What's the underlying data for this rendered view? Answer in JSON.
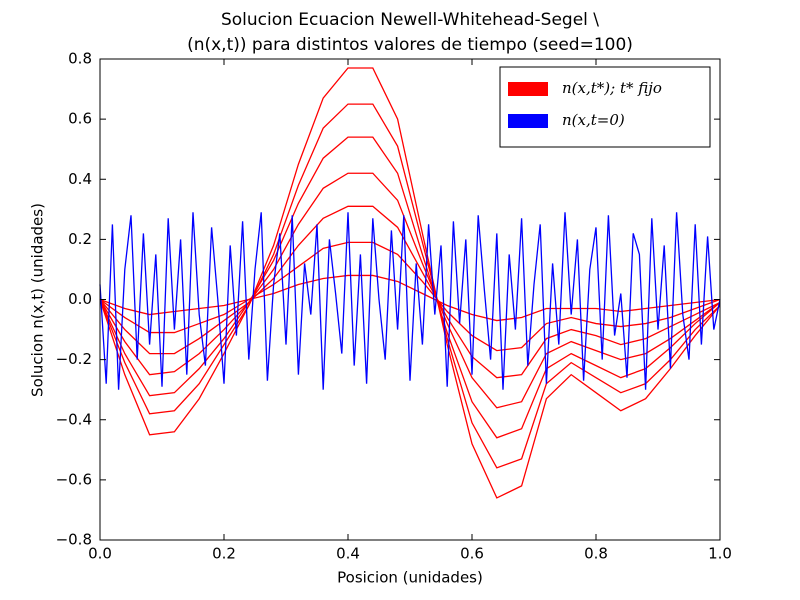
{
  "chart_data": {
    "type": "line",
    "title": "Solucion Ecuacion Newell-Whitehead-Segel \\",
    "subtitle": "(n(x,t)) para distintos valores de tiempo (seed=100)",
    "x_label": "Posicion (unidades)",
    "y_label": "Solucion n(x,t) (unidades)",
    "x": [
      0,
      0.04,
      0.08,
      0.12,
      0.16,
      0.2,
      0.24,
      0.28,
      0.32,
      0.36,
      0.4,
      0.44,
      0.48,
      0.52,
      0.56,
      0.6,
      0.64,
      0.68,
      0.72,
      0.76,
      0.8,
      0.84,
      0.88,
      0.92,
      0.96,
      1.0
    ],
    "series": [
      {
        "name": "n(x,t*); t* fijo",
        "color": "#ff0000",
        "values": [
          0,
          -0.25,
          -0.45,
          -0.44,
          -0.33,
          -0.18,
          -0.02,
          0.18,
          0.45,
          0.67,
          0.77,
          0.77,
          0.6,
          0.22,
          -0.15,
          -0.48,
          -0.66,
          -0.62,
          -0.33,
          -0.25,
          -0.31,
          -0.37,
          -0.33,
          -0.23,
          -0.12,
          -0.02
        ]
      },
      {
        "color": "#ff0000",
        "values": [
          0,
          -0.21,
          -0.38,
          -0.37,
          -0.28,
          -0.15,
          -0.02,
          0.15,
          0.38,
          0.57,
          0.65,
          0.65,
          0.51,
          0.19,
          -0.13,
          -0.41,
          -0.56,
          -0.53,
          -0.28,
          -0.21,
          -0.26,
          -0.31,
          -0.28,
          -0.2,
          -0.1,
          -0.02
        ]
      },
      {
        "color": "#ff0000",
        "values": [
          0,
          -0.18,
          -0.32,
          -0.31,
          -0.23,
          -0.13,
          -0.01,
          0.13,
          0.32,
          0.47,
          0.54,
          0.54,
          0.42,
          0.15,
          -0.11,
          -0.34,
          -0.46,
          -0.43,
          -0.23,
          -0.18,
          -0.22,
          -0.26,
          -0.23,
          -0.16,
          -0.08,
          -0.01
        ]
      },
      {
        "color": "#ff0000",
        "values": [
          0,
          -0.14,
          -0.25,
          -0.24,
          -0.18,
          -0.1,
          -0.01,
          0.1,
          0.25,
          0.37,
          0.42,
          0.42,
          0.33,
          0.12,
          -0.08,
          -0.26,
          -0.36,
          -0.34,
          -0.18,
          -0.14,
          -0.17,
          -0.2,
          -0.18,
          -0.13,
          -0.07,
          -0.01
        ]
      },
      {
        "color": "#ff0000",
        "values": [
          0,
          -0.1,
          -0.18,
          -0.18,
          -0.13,
          -0.07,
          -0.01,
          0.07,
          0.18,
          0.27,
          0.31,
          0.31,
          0.24,
          0.09,
          -0.06,
          -0.19,
          -0.26,
          -0.25,
          -0.13,
          -0.1,
          -0.12,
          -0.15,
          -0.13,
          -0.09,
          -0.05,
          -0.01
        ]
      },
      {
        "color": "#ff0000",
        "values": [
          0,
          -0.06,
          -0.11,
          -0.11,
          -0.08,
          -0.05,
          0,
          0.05,
          0.11,
          0.17,
          0.19,
          0.19,
          0.15,
          0.06,
          -0.04,
          -0.12,
          -0.17,
          -0.16,
          -0.08,
          -0.06,
          -0.08,
          -0.09,
          -0.08,
          -0.06,
          -0.03,
          0
        ]
      },
      {
        "color": "#ff0000",
        "values": [
          0,
          -0.03,
          -0.05,
          -0.04,
          -0.03,
          -0.02,
          0,
          0.02,
          0.05,
          0.07,
          0.08,
          0.08,
          0.06,
          0.02,
          -0.02,
          -0.05,
          -0.07,
          -0.06,
          -0.03,
          -0.03,
          -0.03,
          -0.04,
          -0.03,
          -0.02,
          -0.01,
          0
        ]
      },
      {
        "name": "n(x,t=0)",
        "color": "#0000ff",
        "x": [
          0,
          0.01,
          0.02,
          0.03,
          0.04,
          0.05,
          0.06,
          0.07,
          0.08,
          0.09,
          0.1,
          0.11,
          0.12,
          0.13,
          0.14,
          0.15,
          0.16,
          0.17,
          0.18,
          0.19,
          0.2,
          0.21,
          0.22,
          0.23,
          0.24,
          0.25,
          0.26,
          0.27,
          0.28,
          0.29,
          0.3,
          0.31,
          0.32,
          0.33,
          0.34,
          0.35,
          0.36,
          0.37,
          0.38,
          0.39,
          0.4,
          0.41,
          0.42,
          0.43,
          0.44,
          0.45,
          0.46,
          0.47,
          0.48,
          0.49,
          0.5,
          0.51,
          0.52,
          0.53,
          0.54,
          0.55,
          0.56,
          0.57,
          0.58,
          0.59,
          0.6,
          0.61,
          0.62,
          0.63,
          0.64,
          0.65,
          0.66,
          0.67,
          0.68,
          0.69,
          0.7,
          0.71,
          0.72,
          0.73,
          0.74,
          0.75,
          0.76,
          0.77,
          0.78,
          0.79,
          0.8,
          0.81,
          0.82,
          0.83,
          0.84,
          0.85,
          0.86,
          0.87,
          0.88,
          0.89,
          0.9,
          0.91,
          0.92,
          0.93,
          0.94,
          0.95,
          0.96,
          0.97,
          0.98,
          0.99,
          1.0
        ],
        "values": [
          0.05,
          -0.28,
          0.25,
          -0.3,
          0.1,
          0.28,
          -0.2,
          0.22,
          -0.15,
          0.15,
          -0.29,
          0.27,
          -0.1,
          0.2,
          -0.25,
          0.29,
          -0.05,
          -0.22,
          0.24,
          0.0,
          -0.28,
          0.18,
          -0.12,
          0.26,
          -0.2,
          0.1,
          0.29,
          -0.27,
          0.05,
          0.22,
          -0.15,
          0.28,
          -0.25,
          0.12,
          -0.05,
          0.25,
          -0.3,
          0.2,
          0.02,
          -0.18,
          0.29,
          -0.22,
          0.15,
          -0.28,
          0.27,
          0.0,
          -0.2,
          0.23,
          -0.1,
          0.28,
          -0.27,
          0.12,
          -0.15,
          0.25,
          -0.05,
          0.18,
          -0.29,
          0.26,
          -0.08,
          0.2,
          -0.25,
          0.28,
          0.03,
          -0.2,
          0.22,
          -0.3,
          0.15,
          -0.1,
          0.27,
          -0.22,
          0.05,
          0.25,
          -0.28,
          0.12,
          -0.15,
          0.29,
          -0.05,
          0.2,
          -0.27,
          0.1,
          0.24,
          -0.2,
          0.28,
          -0.12,
          0.02,
          -0.26,
          0.22,
          0.15,
          -0.3,
          0.27,
          -0.1,
          0.18,
          -0.23,
          0.29,
          -0.05,
          -0.2,
          0.25,
          -0.15,
          0.21,
          -0.1,
          0.0
        ]
      }
    ],
    "xlim": [
      0,
      1
    ],
    "ylim": [
      -0.8,
      0.8
    ],
    "xticks": [
      {
        "value": 0,
        "label": "0.0"
      },
      {
        "value": 0.2,
        "label": "0.2"
      },
      {
        "value": 0.4,
        "label": "0.4"
      },
      {
        "value": 0.6,
        "label": "0.6"
      },
      {
        "value": 0.8,
        "label": "0.8"
      },
      {
        "value": 1,
        "label": "1.0"
      }
    ],
    "yticks": [
      {
        "value": -0.8,
        "label": "−0.8"
      },
      {
        "value": -0.6,
        "label": "−0.6"
      },
      {
        "value": -0.4,
        "label": "−0.4"
      },
      {
        "value": -0.2,
        "label": "−0.2"
      },
      {
        "value": 0,
        "label": "0.0"
      },
      {
        "value": 0.2,
        "label": "0.2"
      },
      {
        "value": 0.4,
        "label": "0.4"
      },
      {
        "value": 0.6,
        "label": "0.6"
      },
      {
        "value": 0.8,
        "label": "0.8"
      }
    ],
    "grid": false,
    "legend": "upper right"
  }
}
